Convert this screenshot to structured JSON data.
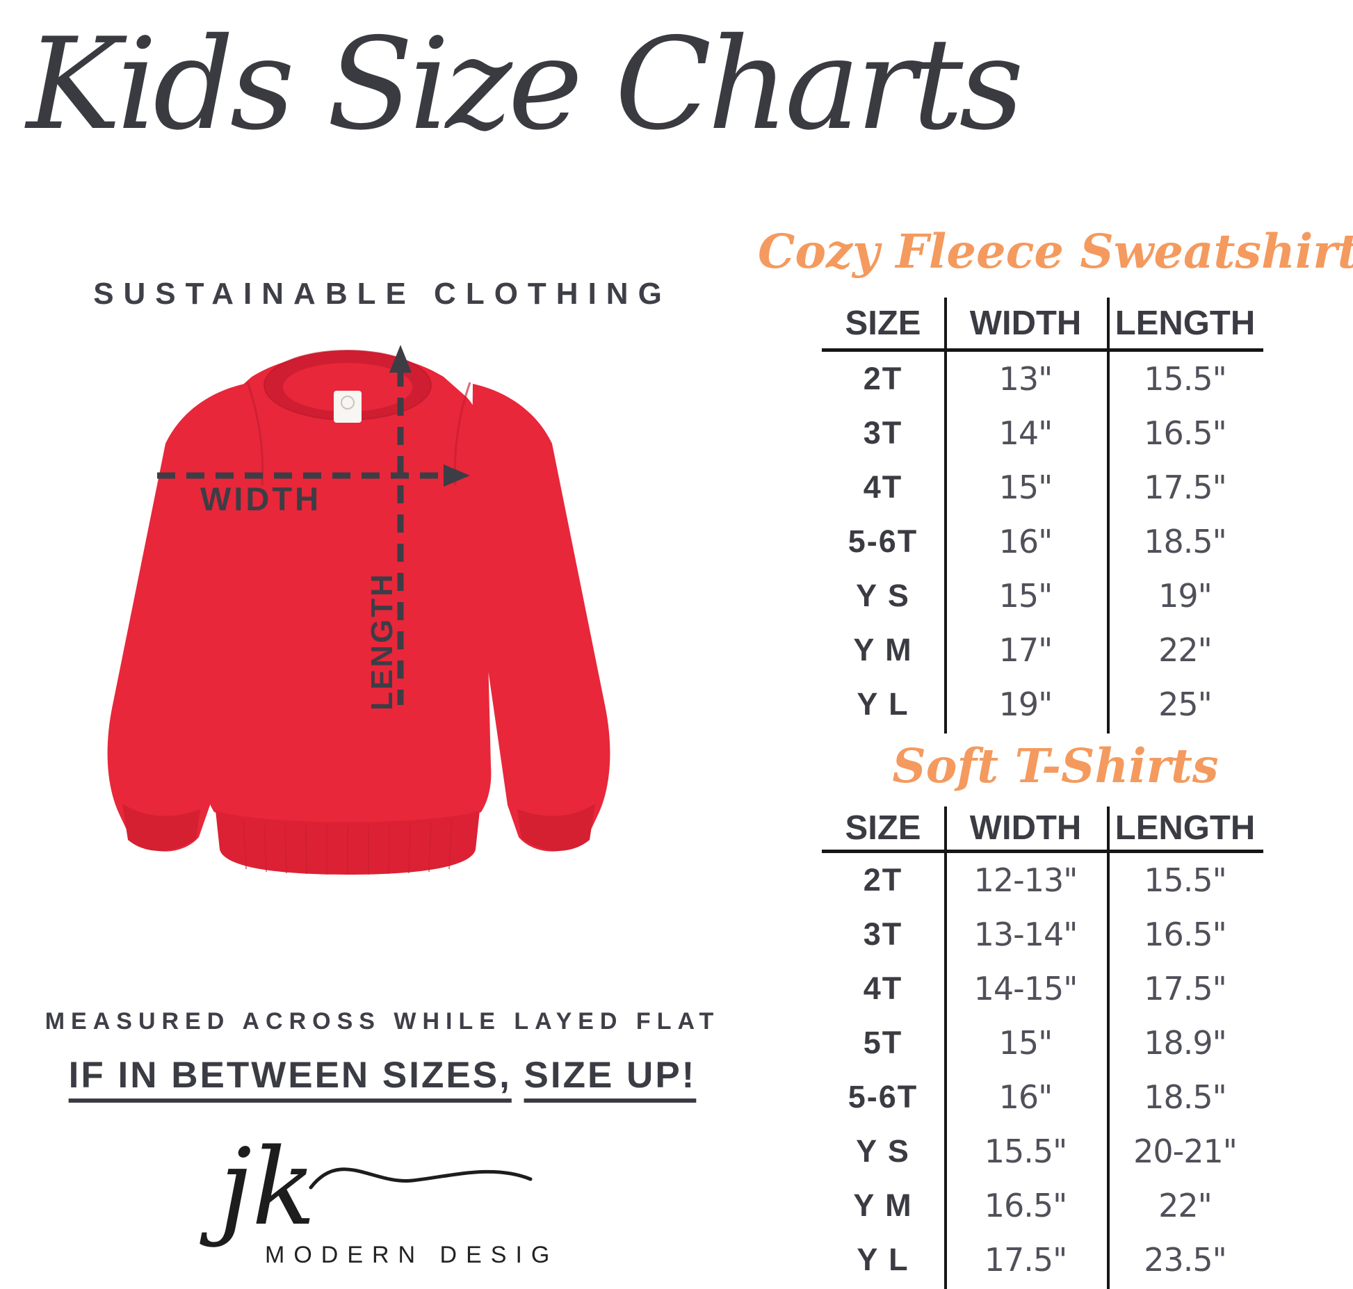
{
  "page": {
    "title": "Kids Size Charts",
    "subtitle": "SUSTAINABLE CLOTHING",
    "measure_note": "MEASURED ACROSS WHILE LAYED FLAT",
    "size_up_note": {
      "part1": "IF IN BETWEEN SIZES,",
      "part2": "SIZE UP!"
    }
  },
  "diagram": {
    "garment": "red crewneck fleece sweatshirt with neck tag",
    "width_label": "WIDTH",
    "length_label": "LENGTH"
  },
  "brand": {
    "initials": "jk",
    "name": "MODERN DESIGN"
  },
  "colors": {
    "accent_orange": "#f49a5e",
    "sweatshirt_red": "#e8273a",
    "sweatshirt_red_dark": "#cf1e31",
    "text_dark": "#3b3b43",
    "value_text": "#50505a",
    "line_black": "#161616",
    "background": "#ffffff"
  },
  "tables": [
    {
      "title": "Cozy Fleece Sweatshirt",
      "columns": [
        "SIZE",
        "WIDTH",
        "LENGTH"
      ],
      "rows": [
        [
          "2T",
          "13\"",
          "15.5\""
        ],
        [
          "3T",
          "14\"",
          "16.5\""
        ],
        [
          "4T",
          "15\"",
          "17.5\""
        ],
        [
          "5-6T",
          "16\"",
          "18.5\""
        ],
        [
          "Y S",
          "15\"",
          "19\""
        ],
        [
          "Y M",
          "17\"",
          "22\""
        ],
        [
          "Y L",
          "19\"",
          "25\""
        ]
      ]
    },
    {
      "title": "Soft T-Shirts",
      "columns": [
        "SIZE",
        "WIDTH",
        "LENGTH"
      ],
      "rows": [
        [
          "2T",
          "12-13\"",
          "15.5\""
        ],
        [
          "3T",
          "13-14\"",
          "16.5\""
        ],
        [
          "4T",
          "14-15\"",
          "17.5\""
        ],
        [
          "5T",
          "15\"",
          "18.9\""
        ],
        [
          "5-6T",
          "16\"",
          "18.5\""
        ],
        [
          "Y S",
          "15.5\"",
          "20-21\""
        ],
        [
          "Y M",
          "16.5\"",
          "22\""
        ],
        [
          "Y L",
          "17.5\"",
          "23.5\""
        ]
      ]
    }
  ],
  "chart_data": [
    {
      "type": "table",
      "title": "Cozy Fleece Sweatshirt",
      "columns": [
        "SIZE",
        "WIDTH",
        "LENGTH"
      ],
      "rows": [
        [
          "2T",
          "13\"",
          "15.5\""
        ],
        [
          "3T",
          "14\"",
          "16.5\""
        ],
        [
          "4T",
          "15\"",
          "17.5\""
        ],
        [
          "5-6T",
          "16\"",
          "18.5\""
        ],
        [
          "Y S",
          "15\"",
          "19\""
        ],
        [
          "Y M",
          "17\"",
          "22\""
        ],
        [
          "Y L",
          "19\"",
          "25\""
        ]
      ]
    },
    {
      "type": "table",
      "title": "Soft T-Shirts",
      "columns": [
        "SIZE",
        "WIDTH",
        "LENGTH"
      ],
      "rows": [
        [
          "2T",
          "12-13\"",
          "15.5\""
        ],
        [
          "3T",
          "13-14\"",
          "16.5\""
        ],
        [
          "4T",
          "14-15\"",
          "17.5\""
        ],
        [
          "5T",
          "15\"",
          "18.9\""
        ],
        [
          "5-6T",
          "16\"",
          "18.5\""
        ],
        [
          "Y S",
          "15.5\"",
          "20-21\""
        ],
        [
          "Y M",
          "16.5\"",
          "22\""
        ],
        [
          "Y L",
          "17.5\"",
          "23.5\""
        ]
      ]
    }
  ]
}
